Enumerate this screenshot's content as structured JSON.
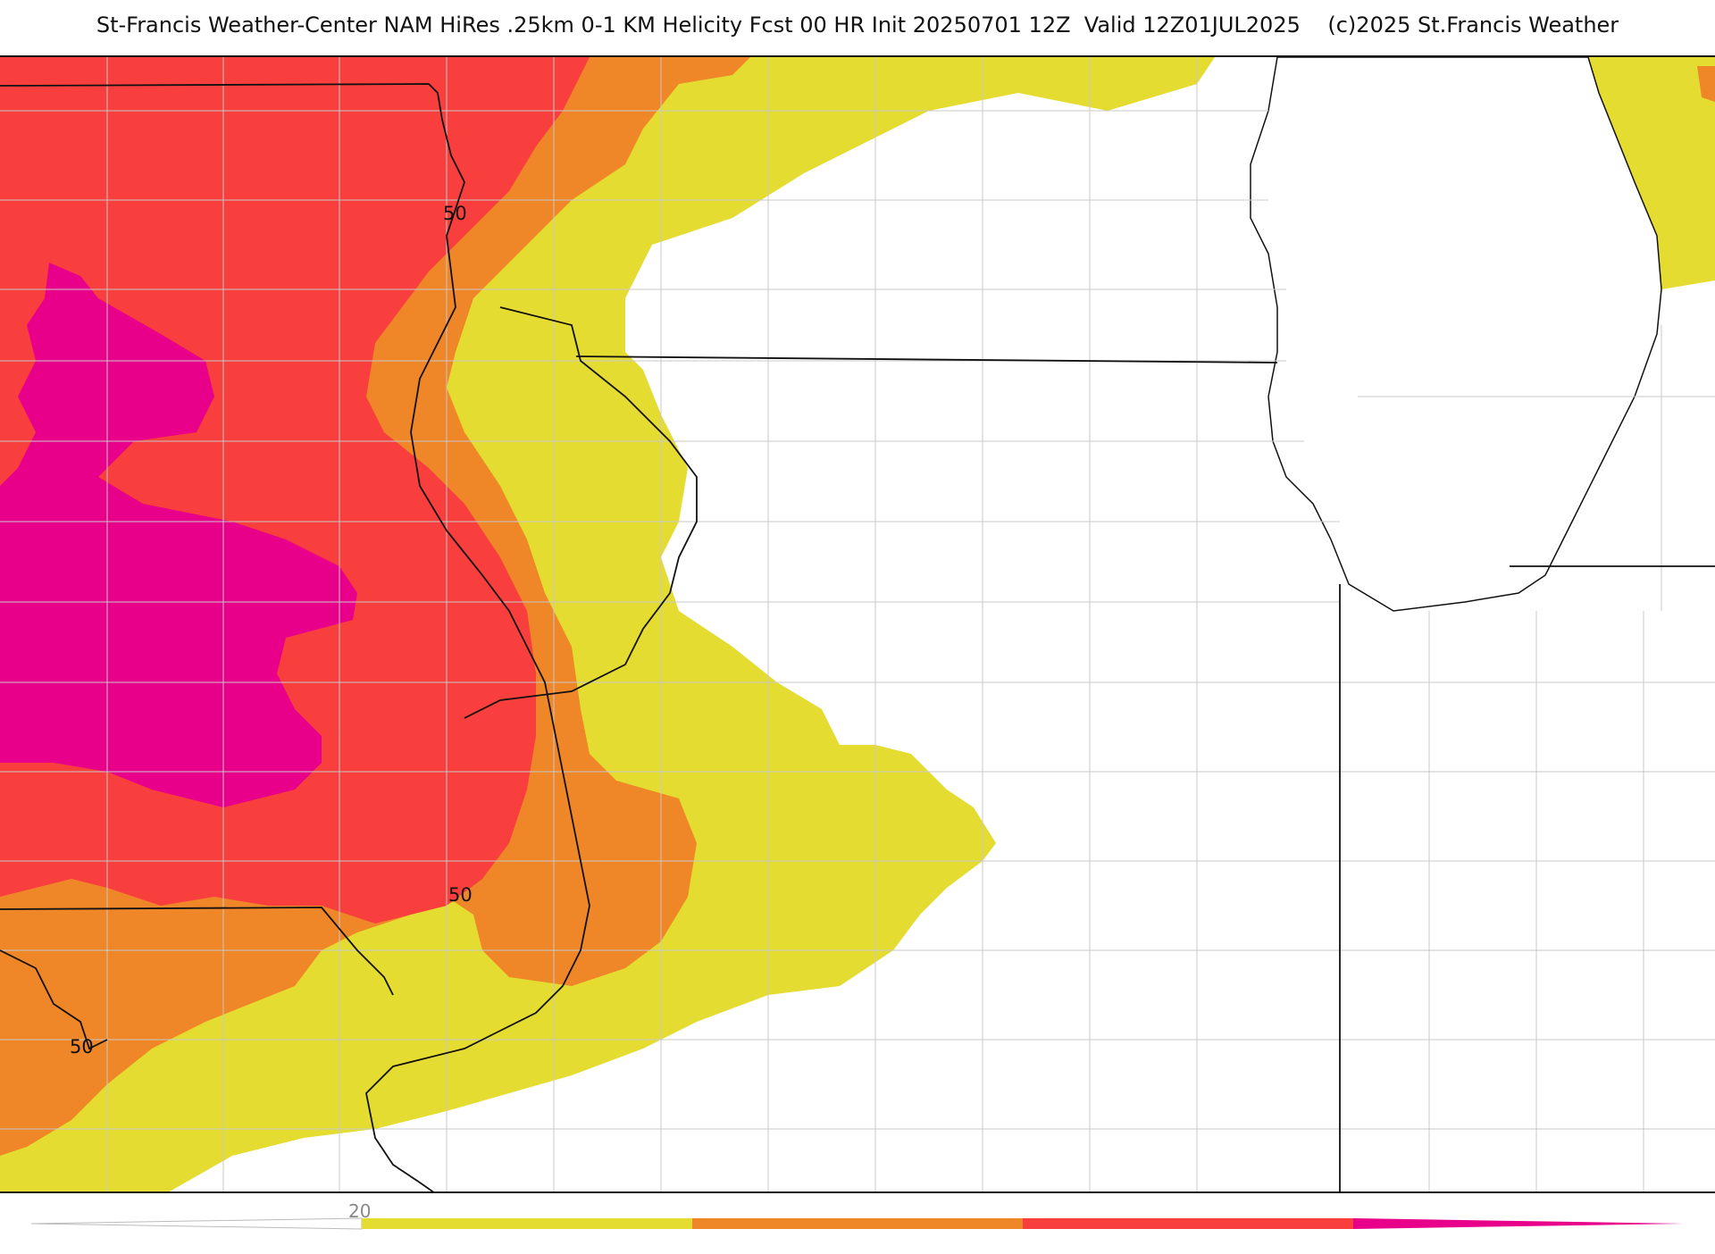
{
  "title": "St-Francis Weather-Center NAM HiRes .25km 0-1 KM Helicity Fcst 00 HR Init 20250701 12Z  Valid 12Z01JUL2025    (c)2025 St.Francis Weather",
  "colors": {
    "band_20_30": "#e5dc32",
    "band_30_40": "#ef8628",
    "band_40_50": "#f93e3e",
    "band_50_plus": "#e8008a",
    "lake": "#ffffff",
    "state_border": "#111111",
    "county_border": "#c8c8c8"
  },
  "contour_labels": [
    "50",
    "50",
    "50"
  ],
  "colorbar": {
    "tick_label": "20",
    "segments": [
      "#e5dc32",
      "#ef8628",
      "#f93e3e",
      "#e8008a"
    ]
  }
}
